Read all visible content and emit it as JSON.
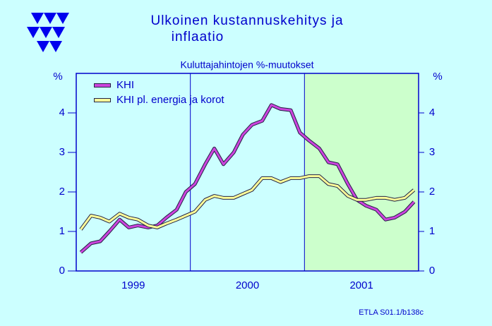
{
  "chart_data": {
    "type": "line",
    "title": [
      "Ulkoinen  kustannuskehitys  ja",
      "inflaatio"
    ],
    "subtitle": "Kuluttajahintojen %-muutokset",
    "y_unit": "%",
    "y2_unit": "%",
    "footer": "ETLA S01.1/b138c",
    "x": [
      1999.04,
      1999.13,
      1999.21,
      1999.29,
      1999.38,
      1999.46,
      1999.54,
      1999.63,
      1999.71,
      1999.79,
      1999.88,
      1999.96,
      2000.04,
      2000.13,
      2000.21,
      2000.29,
      2000.38,
      2000.46,
      2000.54,
      2000.63,
      2000.71,
      2000.79,
      2000.88,
      2000.96,
      2001.04,
      2001.13,
      2001.21,
      2001.29,
      2001.38,
      2001.46,
      2001.54,
      2001.63,
      2001.71,
      2001.79,
      2001.88,
      2001.96
    ],
    "xlim": [
      1999,
      2002
    ],
    "xticks": [
      {
        "value": 1999.5,
        "label": "1999"
      },
      {
        "value": 2000.5,
        "label": "2000"
      },
      {
        "value": 2001.5,
        "label": "2001"
      }
    ],
    "vlines": [
      2000,
      2001
    ],
    "shade": [
      2001,
      2002
    ],
    "shade_color": "#ccffcc",
    "ylim": [
      0,
      5
    ],
    "yticks": [
      0,
      1,
      2,
      3,
      4
    ],
    "y2lim": [
      0,
      5
    ],
    "y2ticks": [
      0,
      1,
      2,
      3,
      4
    ],
    "legend": "upper left",
    "series": [
      {
        "name": "KHI",
        "color": "#cc44dd",
        "values": [
          0.47,
          0.7,
          0.75,
          1.0,
          1.3,
          1.1,
          1.15,
          1.1,
          1.15,
          1.35,
          1.55,
          2.0,
          2.2,
          2.7,
          3.1,
          2.7,
          3.0,
          3.45,
          3.7,
          3.8,
          4.2,
          4.1,
          4.07,
          3.5,
          3.3,
          3.1,
          2.75,
          2.7,
          2.2,
          1.8,
          1.65,
          1.55,
          1.3,
          1.35,
          1.5,
          1.75
        ]
      },
      {
        "name": "KHI pl. energia ja korot",
        "color": "#ffff99",
        "values": [
          1.05,
          1.4,
          1.35,
          1.25,
          1.45,
          1.35,
          1.3,
          1.15,
          1.1,
          1.2,
          1.3,
          1.4,
          1.5,
          1.8,
          1.9,
          1.85,
          1.85,
          1.95,
          2.05,
          2.35,
          2.35,
          2.25,
          2.35,
          2.35,
          2.4,
          2.4,
          2.2,
          2.15,
          1.9,
          1.8,
          1.8,
          1.85,
          1.85,
          1.8,
          1.85,
          2.05
        ]
      }
    ]
  }
}
